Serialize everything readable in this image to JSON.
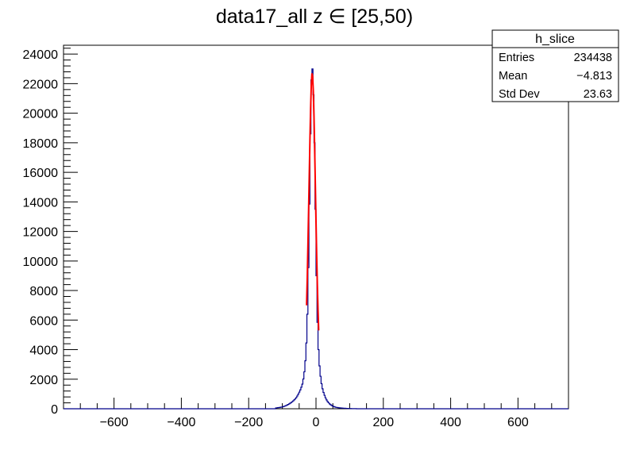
{
  "chart_data": {
    "type": "histogram",
    "title": "data17_all z  ∈ [25,50)",
    "xlim": [
      -750,
      750
    ],
    "ylim": [
      0,
      24600
    ],
    "x_ticks": [
      -600,
      -400,
      -200,
      0,
      200,
      400,
      600
    ],
    "y_ticks": [
      0,
      2000,
      4000,
      6000,
      8000,
      10000,
      12000,
      14000,
      16000,
      18000,
      20000,
      22000,
      24000
    ],
    "bin_width": 3,
    "histogram_color": "#00008b",
    "fit_color": "#ff0000",
    "histogram": {
      "x": [
        -120,
        -110,
        -100,
        -90,
        -80,
        -70,
        -60,
        -55,
        -50,
        -45,
        -40,
        -36,
        -33,
        -30,
        -27,
        -24,
        -21,
        -18,
        -15,
        -12,
        -9,
        -6,
        -3,
        0,
        3,
        6,
        9,
        12,
        15,
        18,
        21,
        24,
        27,
        30,
        35,
        40,
        45,
        50,
        55,
        60,
        70,
        80,
        90,
        100,
        110,
        120
      ],
      "y": [
        50,
        80,
        120,
        200,
        320,
        480,
        700,
        880,
        1100,
        1350,
        1700,
        2200,
        2800,
        3700,
        5200,
        7600,
        11500,
        16200,
        21000,
        23500,
        22500,
        20000,
        16000,
        11000,
        7000,
        4700,
        3300,
        2500,
        1900,
        1500,
        1200,
        1000,
        820,
        650,
        470,
        340,
        250,
        180,
        130,
        95,
        60,
        40,
        25,
        15,
        8,
        4
      ]
    },
    "fit": {
      "x": [
        -28,
        -26,
        -24,
        -22,
        -20,
        -18,
        -16,
        -14,
        -12,
        -10,
        -8,
        -6,
        -4,
        -2,
        0,
        2,
        4,
        6,
        8
      ],
      "y": [
        7000,
        8800,
        11000,
        13400,
        15800,
        18200,
        20300,
        21900,
        22700,
        22500,
        21500,
        19800,
        17600,
        15200,
        12700,
        10400,
        8400,
        6700,
        5300
      ]
    },
    "stats_box": {
      "title": "h_slice",
      "rows": [
        {
          "label": "Entries",
          "value": "234438"
        },
        {
          "label": "Mean",
          "value": "−4.813"
        },
        {
          "label": "Std Dev",
          "value": "23.63"
        }
      ]
    }
  }
}
